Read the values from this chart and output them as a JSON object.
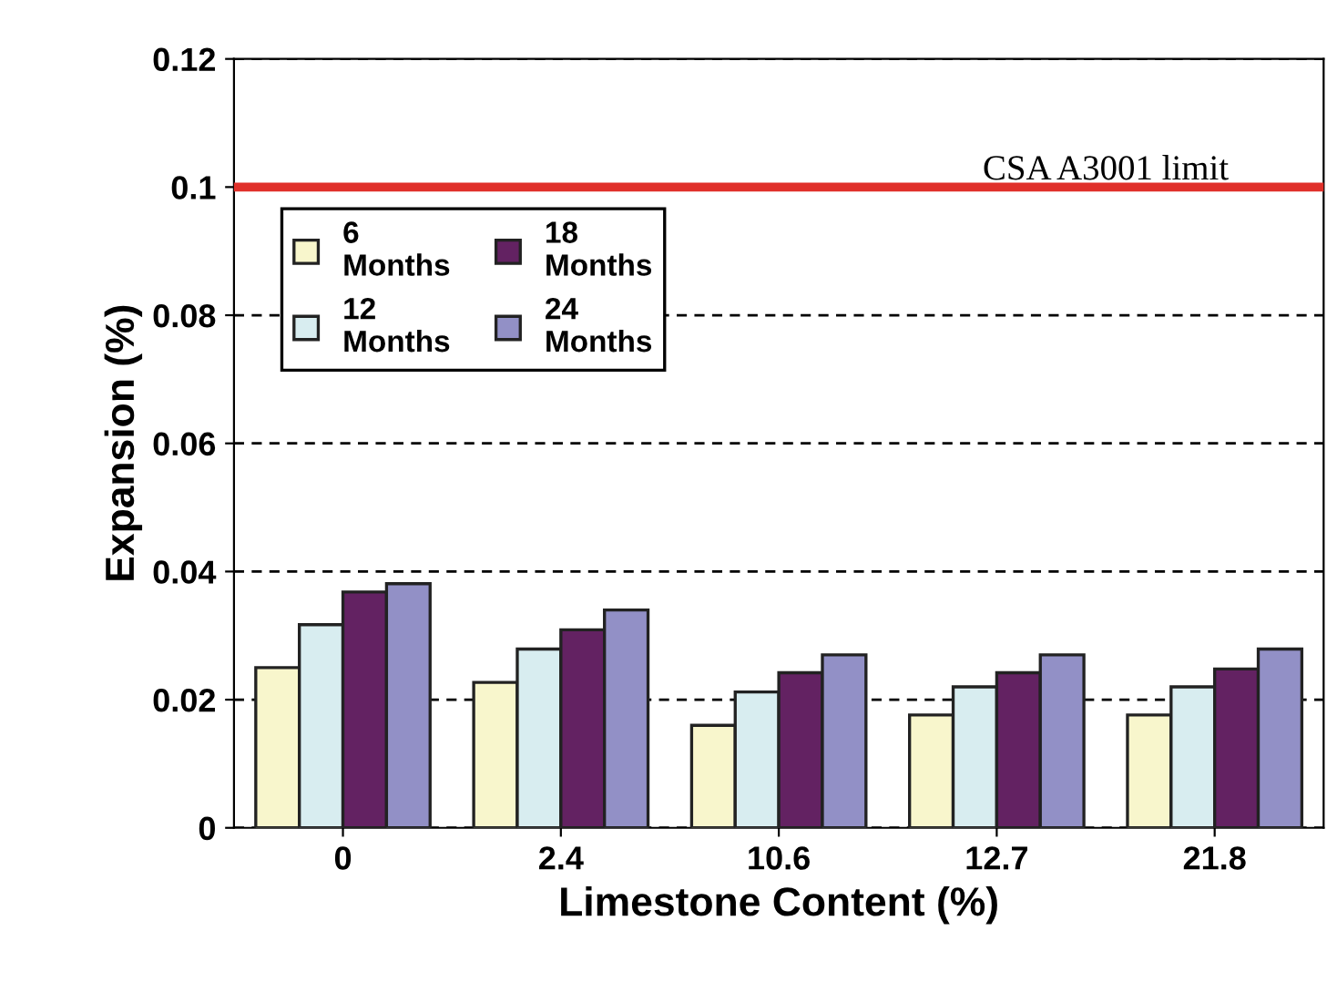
{
  "chart_data": {
    "type": "bar",
    "xlabel": "Limestone Content (%)",
    "ylabel": "Expansion (%)",
    "categories": [
      "0",
      "2.4",
      "10.6",
      "12.7",
      "21.8"
    ],
    "series": [
      {
        "name": "6\nMonths",
        "color": "#f8f6cc",
        "values": [
          0.025,
          0.0227,
          0.016,
          0.0176,
          0.0176
        ]
      },
      {
        "name": "12\nMonths",
        "color": "#d8edf0",
        "values": [
          0.0317,
          0.0279,
          0.0212,
          0.022,
          0.022
        ]
      },
      {
        "name": "18\nMonths",
        "color": "#632262",
        "values": [
          0.0368,
          0.0309,
          0.0242,
          0.0242,
          0.0248
        ]
      },
      {
        "name": "24\nMonths",
        "color": "#9290c6",
        "values": [
          0.0381,
          0.034,
          0.027,
          0.027,
          0.0279
        ]
      }
    ],
    "ylim": [
      0,
      0.12
    ],
    "yticks": [
      0,
      0.02,
      0.04,
      0.06,
      0.08,
      0.1,
      0.12
    ],
    "ref_lines": [
      {
        "axis": "y",
        "value": 0.1,
        "label": "CSA A3001 limit",
        "color": "#e0302a",
        "line_style": "solid"
      }
    ],
    "grid": "y",
    "legend": "top left"
  }
}
